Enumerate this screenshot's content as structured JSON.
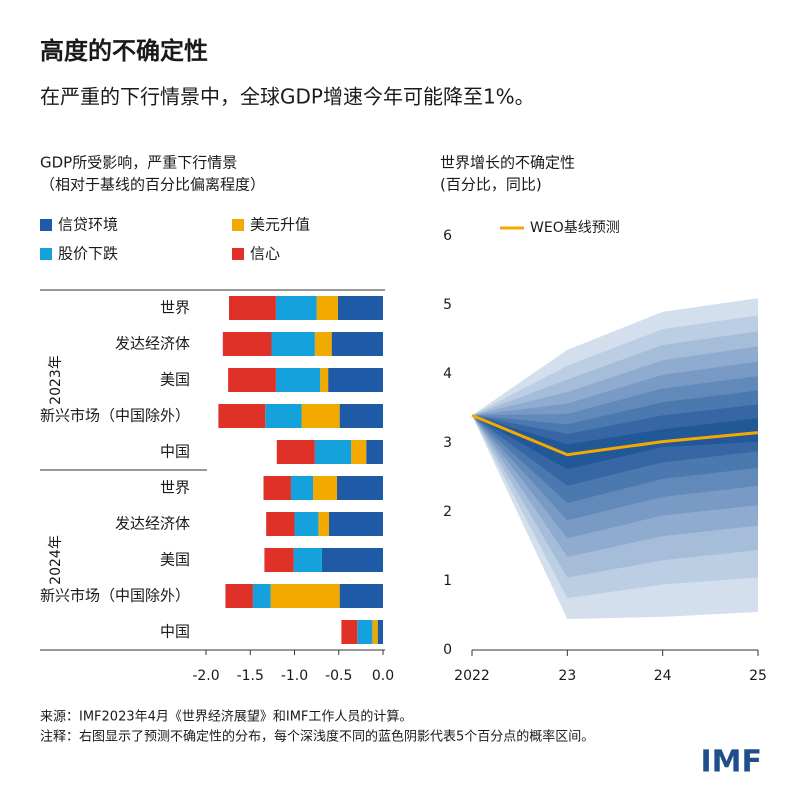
{
  "title": "高度的不确定性",
  "subtitle": "在严重的下行情景中，全球GDP增速今年可能降至1%。",
  "source": "来源：IMF2023年4月《世界经济展望》和IMF工作人员的计算。",
  "note": "注释：右图显示了预测不确定性的分布，每个深浅度不同的蓝色阴影代表5个百分点的概率区间。",
  "logo": "IMF",
  "chart_data": [
    {
      "type": "bar",
      "orientation": "horizontal",
      "stacked": true,
      "title": "GDP所受影响，严重下行情景",
      "subtitle": "（相对于基线的百分比偏离程度）",
      "groups": [
        {
          "name": "2023年",
          "categories": [
            "世界",
            "发达经济体",
            "美国",
            "新兴市场（中国除外）",
            "中国"
          ]
        },
        {
          "name": "2024年",
          "categories": [
            "世界",
            "发达经济体",
            "美国",
            "新兴市场（中国除外）",
            "中国"
          ]
        }
      ],
      "series": [
        {
          "name": "信贷环境",
          "color": "#1f5aa6",
          "values": [
            -0.51,
            -0.58,
            -0.62,
            -0.49,
            -0.19,
            -0.52,
            -0.61,
            -0.69,
            -0.49,
            -0.06
          ]
        },
        {
          "name": "美元升值",
          "color": "#f2a900",
          "values": [
            -0.24,
            -0.19,
            -0.09,
            -0.43,
            -0.17,
            -0.27,
            -0.12,
            0,
            -0.78,
            -0.06
          ]
        },
        {
          "name": "股价下跌",
          "color": "#15a2dc",
          "values": [
            -0.46,
            -0.49,
            -0.5,
            -0.41,
            -0.41,
            -0.25,
            -0.27,
            -0.32,
            -0.2,
            -0.17
          ]
        },
        {
          "name": "信心",
          "color": "#e03128",
          "values": [
            -0.53,
            -0.55,
            -0.54,
            -0.53,
            -0.43,
            -0.31,
            -0.32,
            -0.33,
            -0.31,
            -0.18
          ]
        }
      ],
      "xlim": [
        -2.0,
        0.0
      ],
      "xticks": [
        {
          "value": -2.0,
          "label": "-2.0"
        },
        {
          "value": -1.5,
          "label": "-1.5"
        },
        {
          "value": -1.0,
          "label": "-1.0"
        },
        {
          "value": -0.5,
          "label": "-0.5"
        },
        {
          "value": 0.0,
          "label": "0.0"
        }
      ]
    },
    {
      "type": "fan",
      "title": "世界增长的不确定性",
      "subtitle": "(百分比，同比)",
      "x": [
        2022,
        2023,
        2024,
        2025
      ],
      "xlim": [
        2022,
        2025
      ],
      "xticks": [
        2022,
        {
          "value": 2023,
          "label": "23"
        },
        {
          "value": 2024,
          "label": "24"
        },
        {
          "value": 2025,
          "label": "25"
        }
      ],
      "ylim": [
        0,
        6
      ],
      "yticks": [
        0,
        1,
        2,
        3,
        4,
        5,
        6
      ],
      "series": [
        {
          "name": "WEO基线预测",
          "color": "#f2a900",
          "values": [
            3.4,
            2.83,
            3.02,
            3.15
          ]
        }
      ],
      "bands": [
        {
          "color": "#d3dfec",
          "upper": [
            3.4,
            4.35,
            4.9,
            5.1
          ],
          "lower": [
            3.4,
            0.45,
            0.48,
            0.55
          ]
        },
        {
          "color": "#bccee3",
          "upper": [
            3.4,
            4.12,
            4.65,
            4.85
          ],
          "lower": [
            3.4,
            0.75,
            0.95,
            1.05
          ]
        },
        {
          "color": "#a6bdd9",
          "upper": [
            3.4,
            3.92,
            4.42,
            4.62
          ],
          "lower": [
            3.4,
            1.05,
            1.3,
            1.45
          ]
        },
        {
          "color": "#8fabcf",
          "upper": [
            3.4,
            3.74,
            4.2,
            4.4
          ],
          "lower": [
            3.4,
            1.35,
            1.65,
            1.8
          ]
        },
        {
          "color": "#789ac4",
          "upper": [
            3.4,
            3.57,
            3.99,
            4.18
          ],
          "lower": [
            3.4,
            1.62,
            1.95,
            2.1
          ]
        },
        {
          "color": "#6189ba",
          "upper": [
            3.4,
            3.42,
            3.79,
            3.97
          ],
          "lower": [
            3.4,
            1.88,
            2.22,
            2.38
          ]
        },
        {
          "color": "#4b78af",
          "upper": [
            3.4,
            3.27,
            3.59,
            3.76
          ],
          "lower": [
            3.4,
            2.13,
            2.48,
            2.64
          ]
        },
        {
          "color": "#3667a4",
          "upper": [
            3.4,
            3.13,
            3.4,
            3.56
          ],
          "lower": [
            3.4,
            2.38,
            2.72,
            2.88
          ]
        },
        {
          "color": "#225798",
          "upper": [
            3.4,
            2.98,
            3.2,
            3.36
          ],
          "lower": [
            3.4,
            2.62,
            2.94,
            3.02
          ]
        }
      ]
    }
  ]
}
